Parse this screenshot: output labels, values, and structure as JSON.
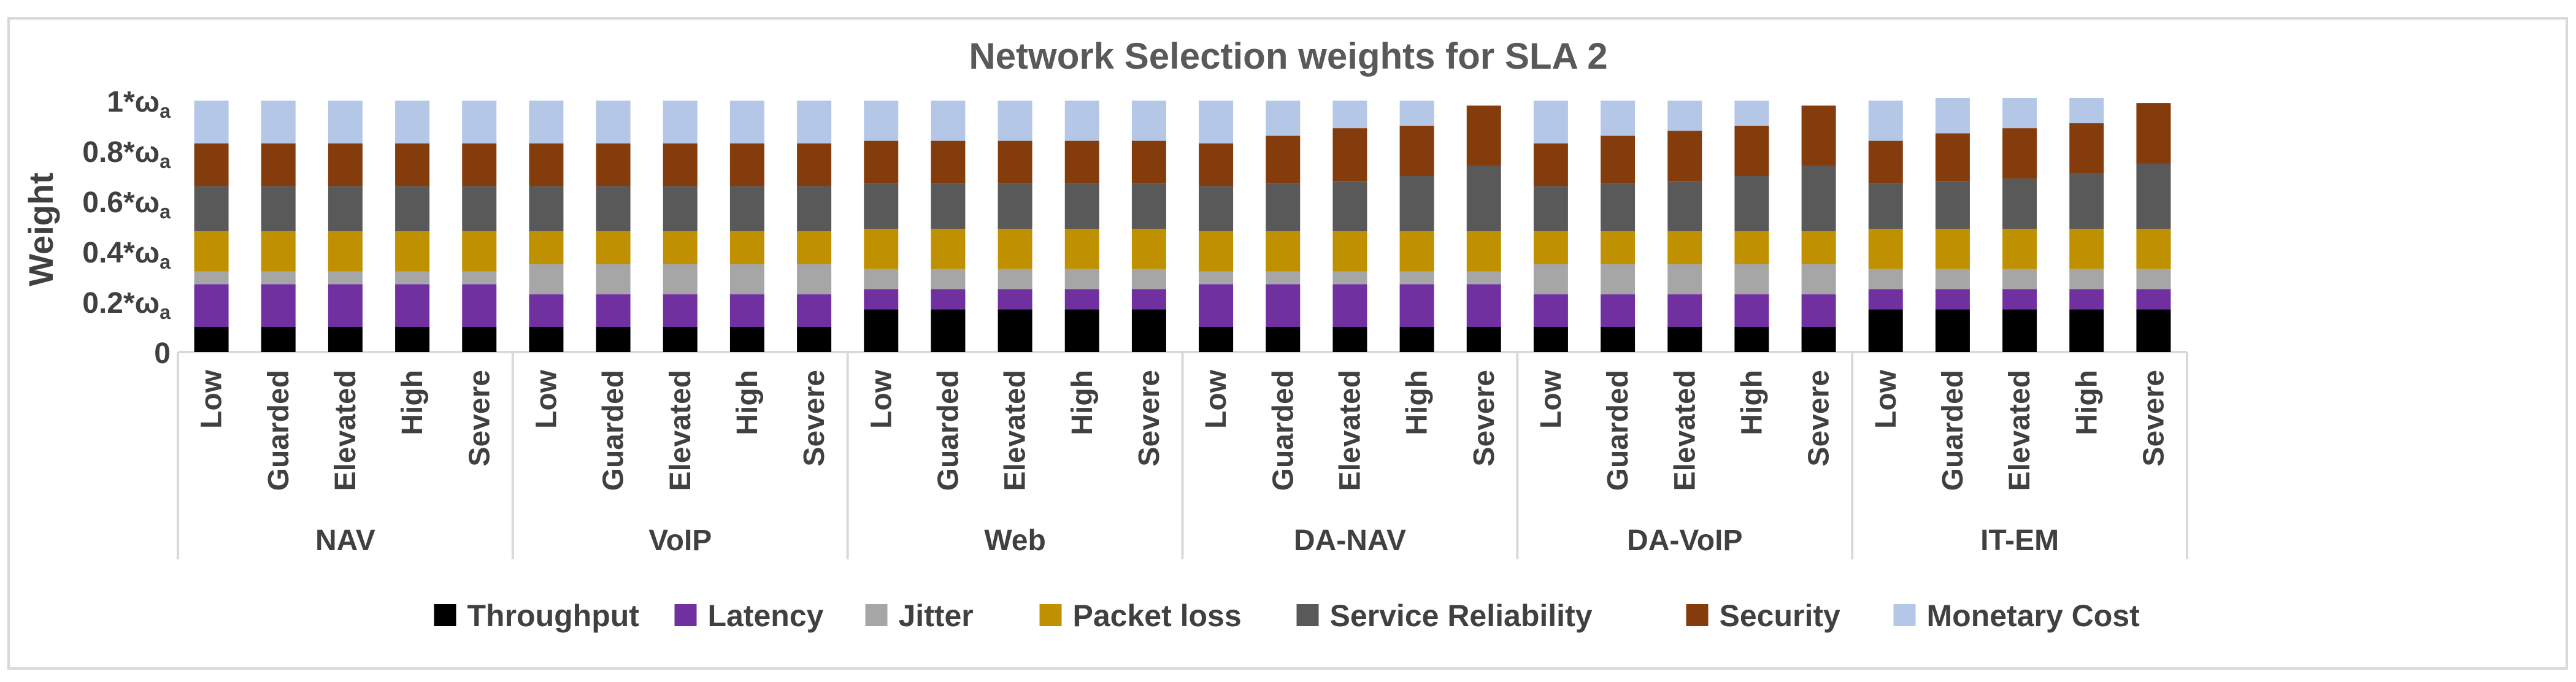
{
  "chart_data": {
    "type": "stacked-bar",
    "title": "Network Selection weights for SLA 2",
    "ylabel": "Weight",
    "xlabel": "",
    "ylim": [
      0,
      1
    ],
    "y_ticks": [
      {
        "value": 0,
        "label": "0",
        "sub": ""
      },
      {
        "value": 0.2,
        "label": "0.2*ω",
        "sub": "a"
      },
      {
        "value": 0.4,
        "label": "0.4*ω",
        "sub": "a"
      },
      {
        "value": 0.6,
        "label": "0.6*ω",
        "sub": "a"
      },
      {
        "value": 0.8,
        "label": "0.8*ω",
        "sub": "a"
      },
      {
        "value": 1,
        "label": "1*ω",
        "sub": "a"
      }
    ],
    "levels": [
      "Low",
      "Guarded",
      "Elevated",
      "High",
      "Severe"
    ],
    "groups": [
      "NAV",
      "VoIP",
      "Web",
      "DA-NAV",
      "DA-VoIP",
      "IT-EM"
    ],
    "series": [
      {
        "name": "Throughput",
        "color": "#000000",
        "values": [
          [
            0.1,
            0.1,
            0.1,
            0.1,
            0.1
          ],
          [
            0.1,
            0.1,
            0.1,
            0.1,
            0.1
          ],
          [
            0.17,
            0.17,
            0.17,
            0.17,
            0.17
          ],
          [
            0.1,
            0.1,
            0.1,
            0.1,
            0.1
          ],
          [
            0.1,
            0.1,
            0.1,
            0.1,
            0.1
          ],
          [
            0.17,
            0.17,
            0.17,
            0.17,
            0.17
          ]
        ]
      },
      {
        "name": "Latency",
        "color": "#7030A0",
        "values": [
          [
            0.17,
            0.17,
            0.17,
            0.17,
            0.17
          ],
          [
            0.13,
            0.13,
            0.13,
            0.13,
            0.13
          ],
          [
            0.08,
            0.08,
            0.08,
            0.08,
            0.08
          ],
          [
            0.17,
            0.17,
            0.17,
            0.17,
            0.17
          ],
          [
            0.13,
            0.13,
            0.13,
            0.13,
            0.13
          ],
          [
            0.08,
            0.08,
            0.08,
            0.08,
            0.08
          ]
        ]
      },
      {
        "name": "Jitter",
        "color": "#A6A6A6",
        "values": [
          [
            0.05,
            0.05,
            0.05,
            0.05,
            0.05
          ],
          [
            0.12,
            0.12,
            0.12,
            0.12,
            0.12
          ],
          [
            0.08,
            0.08,
            0.08,
            0.08,
            0.08
          ],
          [
            0.05,
            0.05,
            0.05,
            0.05,
            0.05
          ],
          [
            0.12,
            0.12,
            0.12,
            0.12,
            0.12
          ],
          [
            0.08,
            0.08,
            0.08,
            0.08,
            0.08
          ]
        ]
      },
      {
        "name": "Packet loss",
        "color": "#BF9000",
        "values": [
          [
            0.16,
            0.16,
            0.16,
            0.16,
            0.16
          ],
          [
            0.13,
            0.13,
            0.13,
            0.13,
            0.13
          ],
          [
            0.16,
            0.16,
            0.16,
            0.16,
            0.16
          ],
          [
            0.16,
            0.16,
            0.16,
            0.16,
            0.16
          ],
          [
            0.13,
            0.13,
            0.13,
            0.13,
            0.13
          ],
          [
            0.16,
            0.16,
            0.16,
            0.16,
            0.16
          ]
        ]
      },
      {
        "name": "Service Reliability",
        "color": "#595959",
        "values": [
          [
            0.18,
            0.18,
            0.18,
            0.18,
            0.18
          ],
          [
            0.18,
            0.18,
            0.18,
            0.18,
            0.18
          ],
          [
            0.18,
            0.18,
            0.18,
            0.18,
            0.18
          ],
          [
            0.18,
            0.19,
            0.2,
            0.22,
            0.26
          ],
          [
            0.18,
            0.19,
            0.2,
            0.22,
            0.26
          ],
          [
            0.18,
            0.19,
            0.2,
            0.22,
            0.26
          ]
        ]
      },
      {
        "name": "Security",
        "color": "#843C0C",
        "values": [
          [
            0.17,
            0.17,
            0.17,
            0.17,
            0.17
          ],
          [
            0.17,
            0.17,
            0.17,
            0.17,
            0.17
          ],
          [
            0.17,
            0.17,
            0.17,
            0.17,
            0.17
          ],
          [
            0.17,
            0.19,
            0.21,
            0.2,
            0.24
          ],
          [
            0.17,
            0.19,
            0.2,
            0.2,
            0.24
          ],
          [
            0.17,
            0.19,
            0.2,
            0.2,
            0.24
          ]
        ]
      },
      {
        "name": "Monetary Cost",
        "color": "#B4C7E7",
        "values": [
          [
            0.17,
            0.17,
            0.17,
            0.17,
            0.17
          ],
          [
            0.17,
            0.17,
            0.17,
            0.17,
            0.17
          ],
          [
            0.16,
            0.16,
            0.16,
            0.16,
            0.16
          ],
          [
            0.17,
            0.14,
            0.11,
            0.1,
            0.0
          ],
          [
            0.17,
            0.14,
            0.12,
            0.1,
            0.0
          ],
          [
            0.16,
            0.14,
            0.12,
            0.1,
            0.0
          ]
        ]
      }
    ],
    "legend_position": "bottom"
  }
}
